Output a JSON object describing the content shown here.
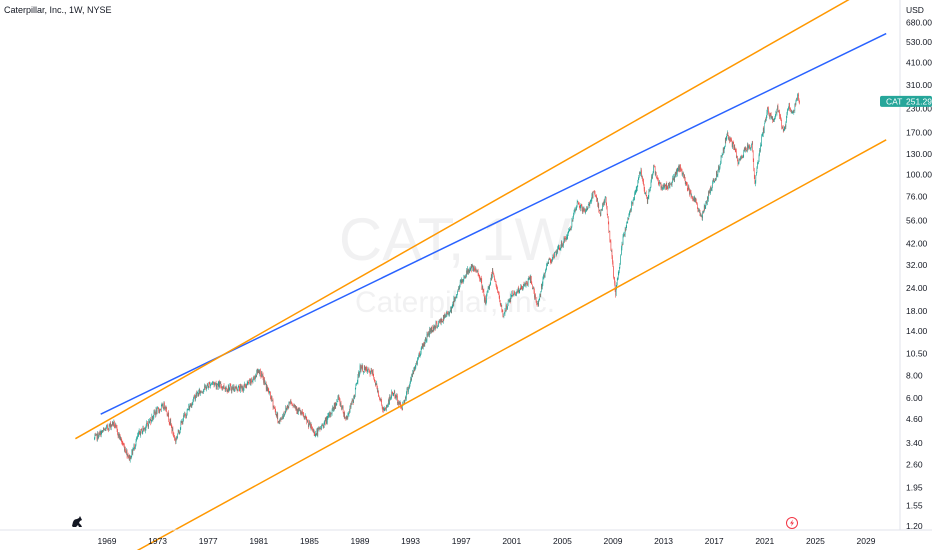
{
  "header": {
    "title": "Caterpillar, Inc., 1W, NYSE"
  },
  "price_axis": {
    "currency": "USD"
  },
  "watermark": {
    "symbol_interval": "CAT, 1W",
    "name": "Caterpillar, Inc."
  },
  "last_price_tag": {
    "symbol": "CAT",
    "price": "251.29"
  },
  "icons": {
    "logo": "tradingview-dino-icon",
    "event": "lightning-event-icon"
  },
  "colors": {
    "up_candle": "#26a69a",
    "down_candle": "#ef5350",
    "resistance_line": "#2962ff",
    "channel_lines": "#ff9800",
    "price_tag": "#26a69a"
  },
  "chart_data": {
    "type": "candlestick",
    "interval": "1W",
    "y_scale": "log",
    "y_ticks": [
      "680.00",
      "530.00",
      "410.00",
      "310.00",
      "230.00",
      "170.00",
      "130.00",
      "100.00",
      "76.00",
      "56.00",
      "42.00",
      "32.00",
      "24.00",
      "18.00",
      "14.00",
      "10.50",
      "8.00",
      "6.00",
      "4.60",
      "3.40",
      "2.60",
      "1.95",
      "1.55",
      "1.20"
    ],
    "x_ticks": [
      "1969",
      "1973",
      "1977",
      "1981",
      "1985",
      "1989",
      "1993",
      "1997",
      "2001",
      "2005",
      "2009",
      "2013",
      "2017",
      "2021",
      "2025",
      "2029"
    ],
    "price_path": [
      [
        1968.0,
        3.6
      ],
      [
        1968.6,
        3.9
      ],
      [
        1969.5,
        4.4
      ],
      [
        1970.3,
        3.3
      ],
      [
        1970.8,
        2.8
      ],
      [
        1971.5,
        3.8
      ],
      [
        1972.2,
        4.3
      ],
      [
        1972.8,
        5.0
      ],
      [
        1973.6,
        5.5
      ],
      [
        1974.4,
        3.5
      ],
      [
        1975.0,
        4.6
      ],
      [
        1976.0,
        6.2
      ],
      [
        1977.3,
        7.3
      ],
      [
        1978.5,
        6.8
      ],
      [
        1979.7,
        6.8
      ],
      [
        1980.5,
        7.5
      ],
      [
        1981.0,
        8.6
      ],
      [
        1981.9,
        6.2
      ],
      [
        1982.6,
        4.4
      ],
      [
        1983.5,
        5.8
      ],
      [
        1984.5,
        4.8
      ],
      [
        1985.5,
        3.8
      ],
      [
        1986.5,
        4.7
      ],
      [
        1987.3,
        6.0
      ],
      [
        1987.9,
        4.6
      ],
      [
        1988.5,
        6.0
      ],
      [
        1989.0,
        8.8
      ],
      [
        1990.0,
        8.2
      ],
      [
        1990.9,
        5.0
      ],
      [
        1991.6,
        6.5
      ],
      [
        1992.3,
        5.3
      ],
      [
        1993.0,
        7.5
      ],
      [
        1993.8,
        11.0
      ],
      [
        1994.5,
        14.0
      ],
      [
        1995.5,
        16.0
      ],
      [
        1996.2,
        18.5
      ],
      [
        1997.0,
        26.0
      ],
      [
        1997.7,
        31.0
      ],
      [
        1998.4,
        29.0
      ],
      [
        1998.9,
        20.0
      ],
      [
        1999.5,
        30.0
      ],
      [
        2000.3,
        17.0
      ],
      [
        2001.0,
        22.0
      ],
      [
        2001.8,
        24.0
      ],
      [
        2002.5,
        27.0
      ],
      [
        2003.0,
        19.0
      ],
      [
        2003.8,
        33.0
      ],
      [
        2004.5,
        37.0
      ],
      [
        2005.5,
        48.0
      ],
      [
        2006.2,
        70.0
      ],
      [
        2006.8,
        62.0
      ],
      [
        2007.5,
        80.0
      ],
      [
        2008.0,
        62.0
      ],
      [
        2008.4,
        75.0
      ],
      [
        2008.9,
        36.0
      ],
      [
        2009.2,
        22.0
      ],
      [
        2009.8,
        45.0
      ],
      [
        2010.5,
        70.0
      ],
      [
        2011.2,
        105.0
      ],
      [
        2011.7,
        70.0
      ],
      [
        2012.2,
        110.0
      ],
      [
        2012.8,
        85.0
      ],
      [
        2013.5,
        88.0
      ],
      [
        2014.3,
        110.0
      ],
      [
        2014.9,
        85.0
      ],
      [
        2015.5,
        72.0
      ],
      [
        2016.0,
        58.0
      ],
      [
        2016.6,
        80.0
      ],
      [
        2017.3,
        105.0
      ],
      [
        2018.0,
        165.0
      ],
      [
        2018.6,
        140.0
      ],
      [
        2018.9,
        115.0
      ],
      [
        2019.5,
        140.0
      ],
      [
        2020.0,
        145.0
      ],
      [
        2020.2,
        90.0
      ],
      [
        2020.7,
        150.0
      ],
      [
        2021.2,
        225.0
      ],
      [
        2021.7,
        195.0
      ],
      [
        2022.0,
        230.0
      ],
      [
        2022.5,
        170.0
      ],
      [
        2022.9,
        240.0
      ],
      [
        2023.2,
        215.0
      ],
      [
        2023.6,
        270.0
      ],
      [
        2023.75,
        251.29
      ]
    ],
    "trendlines": [
      {
        "name": "resistance",
        "points": [
          [
            1968.5,
            4.9
          ],
          [
            2030.6,
            590.0
          ]
        ]
      },
      {
        "name": "channel-upper",
        "points": [
          [
            1966.5,
            3.6
          ],
          [
            2030.0,
            1120.0
          ]
        ]
      },
      {
        "name": "channel-lower",
        "points": [
          [
            1971.0,
            0.85
          ],
          [
            2030.6,
            155.0
          ]
        ]
      }
    ],
    "last_price": 251.29
  }
}
